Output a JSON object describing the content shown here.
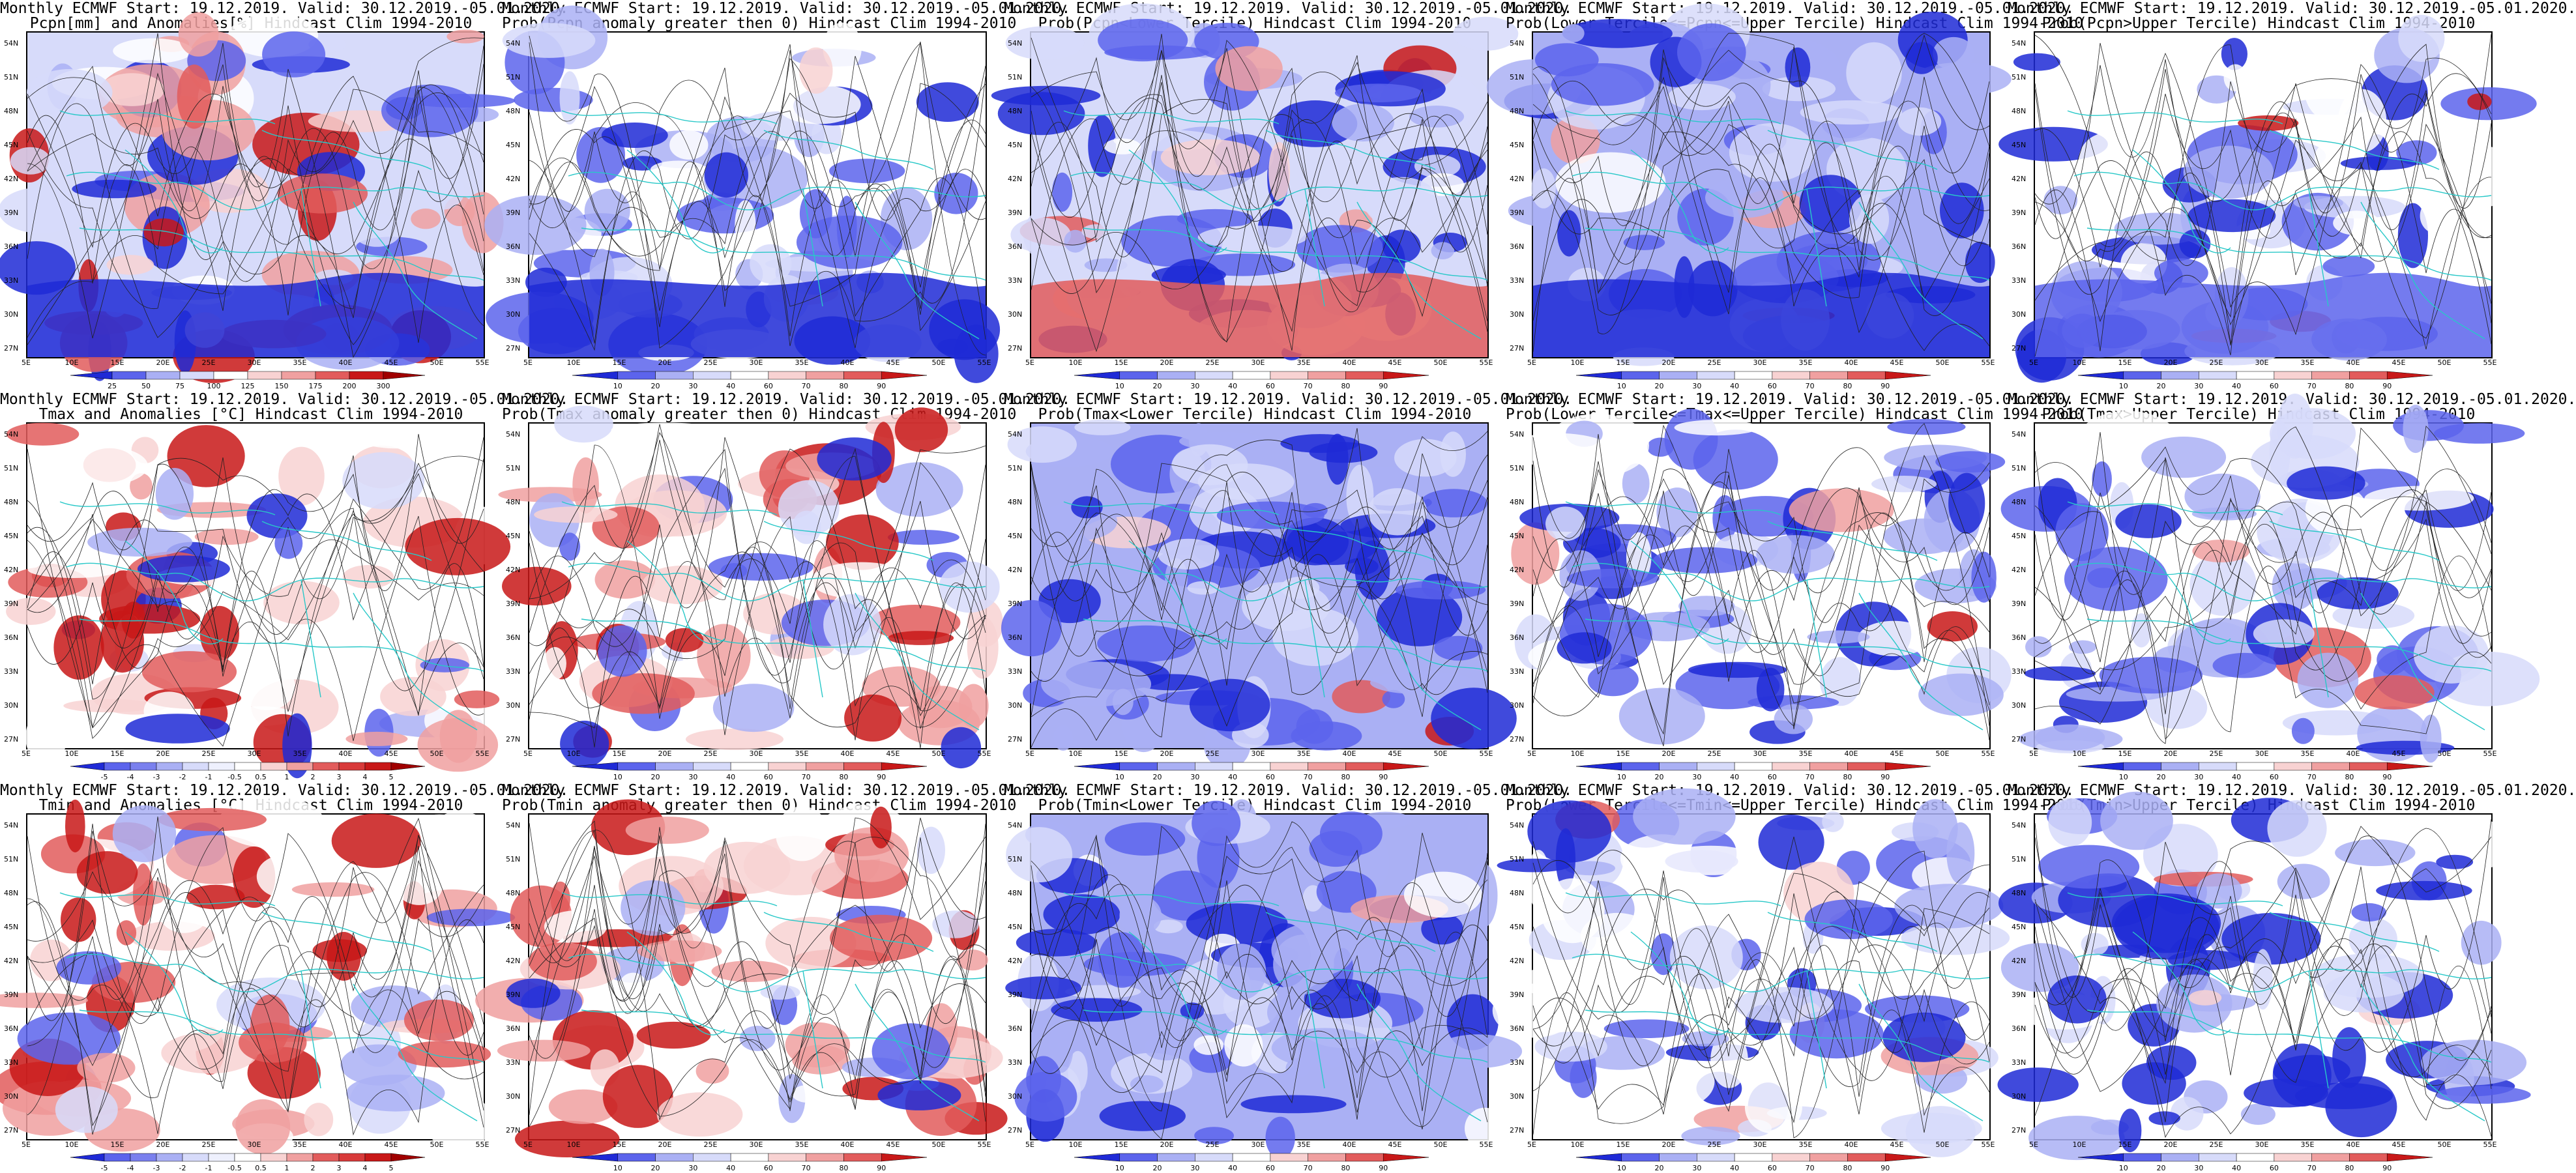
{
  "colors": {
    "blue_dark": "#1f2ad6",
    "blue_mid": "#5c64ec",
    "blue_light": "#aab0f4",
    "blue_pale": "#d7dbfa",
    "white": "#ffffff",
    "red_pale": "#f8d2d2",
    "red_light": "#f0a0a0",
    "red_mid": "#e25c5c",
    "red_dark": "#c81818",
    "coast": "#28c8c8",
    "contour": "#202020"
  },
  "rows": [
    {
      "title1": "Monthly ECMWF Start: 19.12.2019. Valid: 30.12.2019.-05.01.2020.",
      "title2": "Pcpn[mm] and Anomalies[%] Hindcast Clim 1994-2010",
      "scale": "anom_pcp"
    },
    {
      "title1": "Monthly ECMWF Start: 19.12.2019. Valid: 30.12.2019.-05.01.2020.",
      "title2": "Prob(Pcpn anomaly greater then 0) Hindcast Clim 1994-2010",
      "scale": "prob"
    },
    {
      "title1": "Monthly ECMWF Start: 19.12.2019. Valid: 30.12.2019.-05.01.2020.",
      "title2": "Prob(Pcpn<Lower Tercile) Hindcast Clim 1994-2010",
      "scale": "prob"
    },
    {
      "title1": "Monthly ECMWF Start: 19.12.2019. Valid: 30.12.2019.-05.01.2020.",
      "title2": "Prob(Lower Tercile<=Pcpn<=Upper Tercile) Hindcast Clim 1994-2010",
      "scale": "prob"
    },
    {
      "title1": "Monthly ECMWF Start: 19.12.2019. Valid: 30.12.2019.-05.01.2020.",
      "title2": "Prob(Pcpn>Upper Tercile) Hindcast Clim 1994-2010",
      "scale": "prob"
    },
    {
      "title1": "Monthly ECMWF Start: 19.12.2019. Valid: 30.12.2019.-05.01.2020.",
      "title2": "Tmax and Anomalies [°C] Hindcast Clim 1994-2010",
      "scale": "anom_t"
    },
    {
      "title1": "Monthly ECMWF Start: 19.12.2019. Valid: 30.12.2019.-05.01.2020.",
      "title2": "Prob(Tmax anomaly greater then 0) Hindcast Clim 1994-2010",
      "scale": "prob"
    },
    {
      "title1": "Monthly ECMWF Start: 19.12.2019. Valid: 30.12.2019.-05.01.2020.",
      "title2": "Prob(Tmax<Lower Tercile) Hindcast Clim 1994-2010",
      "scale": "prob"
    },
    {
      "title1": "Monthly ECMWF Start: 19.12.2019. Valid: 30.12.2019.-05.01.2020.",
      "title2": "Prob(Lower Tercile<=Tmax<=Upper Tercile) Hindcast Clim 1994-2010",
      "scale": "prob"
    },
    {
      "title1": "Monthly ECMWF Start: 19.12.2019. Valid: 30.12.2019.-05.01.2020.",
      "title2": "Prob(Tmax>Upper Tercile) Hindcast Clim 1994-2010",
      "scale": "prob"
    },
    {
      "title1": "Monthly ECMWF Start: 19.12.2019. Valid: 30.12.2019.-05.01.2020.",
      "title2": "Tmin and Anomalies [°C] Hindcast Clim 1994-2010",
      "scale": "anom_t"
    },
    {
      "title1": "Monthly ECMWF Start: 19.12.2019. Valid: 30.12.2019.-05.01.2020.",
      "title2": "Prob(Tmin anomaly greater then 0) Hindcast Clim 1994-2010",
      "scale": "prob"
    },
    {
      "title1": "Monthly ECMWF Start: 19.12.2019. Valid: 30.12.2019.-05.01.2020.",
      "title2": "Prob(Tmin<Lower Tercile) Hindcast Clim 1994-2010",
      "scale": "prob"
    },
    {
      "title1": "Monthly ECMWF Start: 19.12.2019. Valid: 30.12.2019.-05.01.2020.",
      "title2": "Prob(Lower Tercile<=Tmin<=Upper Tercile) Hindcast Clim 1994-2010",
      "scale": "prob"
    },
    {
      "title1": "Monthly ECMWF Start: 19.12.2019. Valid: 30.12.2019.-05.01.2020.",
      "title2": "Prob(Tmin>Upper Tercile) Hindcast Clim 1994-2010",
      "scale": "prob"
    }
  ],
  "lat_labels": [
    "54N",
    "51N",
    "48N",
    "45N",
    "42N",
    "39N",
    "36N",
    "33N",
    "30N",
    "27N"
  ],
  "lon_labels": [
    "5E",
    "10E",
    "15E",
    "20E",
    "25E",
    "30E",
    "35E",
    "40E",
    "45E",
    "50E",
    "55E"
  ],
  "scales": {
    "prob": [
      "10",
      "20",
      "30",
      "40",
      "60",
      "70",
      "80",
      "90"
    ],
    "anom_pcp": [
      "25",
      "50",
      "75",
      "100",
      "125",
      "150",
      "175",
      "200",
      "300"
    ],
    "anom_t": [
      "-5",
      "-4",
      "-3",
      "-2",
      "-1",
      "-0.5",
      "0.5",
      "1",
      "2",
      "3",
      "4",
      "5"
    ]
  }
}
